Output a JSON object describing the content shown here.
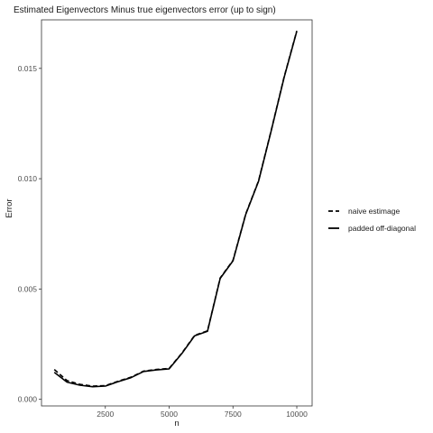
{
  "chart_data": {
    "type": "line",
    "title": "Estimated Eigenvectors Minus true eigenvectors error (up to sign)",
    "xlabel": "n",
    "ylabel": "Error",
    "xlim": [
      0,
      10600
    ],
    "ylim": [
      -0.0003,
      0.0172
    ],
    "x_ticks": [
      2500,
      5000,
      7500,
      10000
    ],
    "x_tick_labels": [
      "2500",
      "5000",
      "7500",
      "10000"
    ],
    "y_ticks": [
      0.0,
      0.005,
      0.01,
      0.015
    ],
    "y_tick_labels": [
      "0.000",
      "0.005",
      "0.010",
      "0.015"
    ],
    "grid": false,
    "legend_position": "right",
    "series": [
      {
        "name": "naive estimage",
        "color": "#000000",
        "dash": "dashed",
        "x": [
          500,
          1000,
          1500,
          2000,
          2500,
          3000,
          3500,
          4000,
          4500,
          5000,
          5500,
          6000,
          6500,
          7000,
          7500,
          8000,
          8500,
          9000,
          9500,
          10000
        ],
        "y": [
          0.00135,
          0.00085,
          0.00068,
          0.0006,
          0.00062,
          0.00082,
          0.001,
          0.00128,
          0.00135,
          0.0014,
          0.0021,
          0.0029,
          0.0031,
          0.0055,
          0.0063,
          0.0084,
          0.0099,
          0.0122,
          0.0146,
          0.0167
        ]
      },
      {
        "name": "padded off-diagonal",
        "color": "#000000",
        "dash": "solid",
        "x": [
          500,
          1000,
          1500,
          2000,
          2500,
          3000,
          3500,
          4000,
          4500,
          5000,
          5500,
          6000,
          6500,
          7000,
          7500,
          8000,
          8500,
          9000,
          9500,
          10000
        ],
        "y": [
          0.00122,
          0.00078,
          0.00064,
          0.00057,
          0.0006,
          0.0008,
          0.00098,
          0.00126,
          0.00133,
          0.00138,
          0.00208,
          0.00288,
          0.00308,
          0.00548,
          0.00628,
          0.00838,
          0.00988,
          0.01218,
          0.01458,
          0.01668
        ]
      }
    ]
  }
}
